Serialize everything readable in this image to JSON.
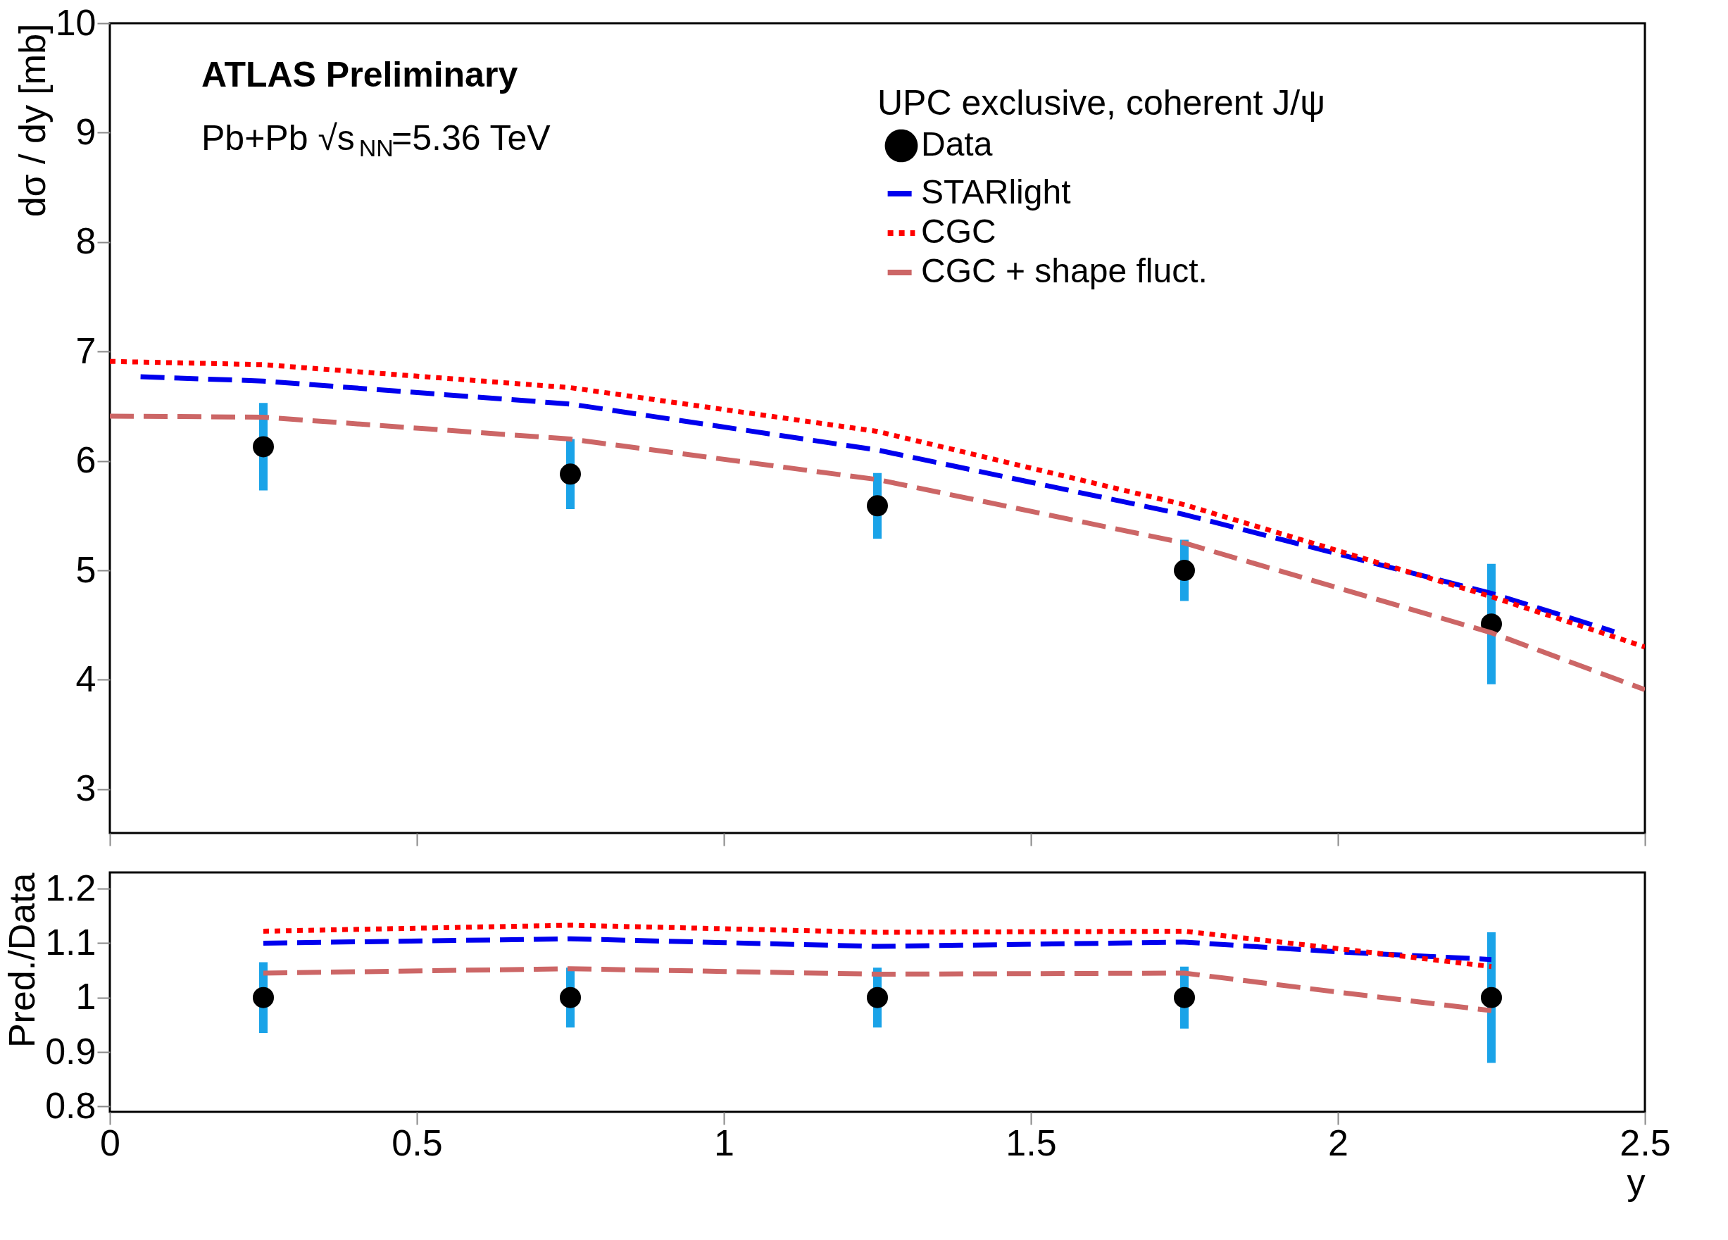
{
  "chart_data": [
    {
      "type": "line",
      "ylabel": "dσ / dy [mb]",
      "xlim": [
        0,
        2.5
      ],
      "xticks": [
        0,
        0.5,
        1,
        1.5,
        2,
        2.5
      ],
      "ylim": [
        2.6,
        10
      ],
      "yticks": [
        3,
        4,
        5,
        6,
        7,
        8,
        9,
        10
      ],
      "tick_labels": "y",
      "grid": false,
      "legend": "top right",
      "annotations": [
        "ATLAS Preliminary",
        "Pb+Pb   √s$_{NN}$=5.36 TeV",
        "UPC exclusive, coherent J/ψ"
      ],
      "series": [
        {
          "name": "Data",
          "type": "scatter",
          "marker": "circle",
          "color": "#000000",
          "x": [
            0.25,
            0.75,
            1.25,
            1.75,
            2.25
          ],
          "values": [
            6.13,
            5.88,
            5.59,
            5.0,
            4.51
          ],
          "errors": [
            0.4,
            0.32,
            0.3,
            0.28,
            0.55
          ]
        },
        {
          "name": "STARlight",
          "type": "line",
          "line_style": "dashed",
          "color": "#0000ee",
          "x": [
            0.05,
            0.25,
            0.75,
            1.25,
            1.75,
            2.25,
            2.45
          ],
          "values": [
            6.77,
            6.73,
            6.52,
            6.1,
            5.51,
            4.79,
            4.44
          ]
        },
        {
          "name": "CGC",
          "type": "line",
          "line_style": "dotted",
          "color": "#ff0000",
          "x": [
            0,
            0.25,
            0.75,
            1.25,
            1.75,
            2.25,
            2.5
          ],
          "values": [
            6.91,
            6.88,
            6.67,
            6.27,
            5.6,
            4.76,
            4.3
          ]
        },
        {
          "name": "CGC + shape fluct.",
          "type": "line",
          "line_style": "dashed",
          "color": "#cc6666",
          "x": [
            0,
            0.25,
            0.75,
            1.25,
            1.75,
            2.25,
            2.5
          ],
          "values": [
            6.41,
            6.4,
            6.2,
            5.83,
            5.25,
            4.43,
            3.91
          ]
        }
      ]
    },
    {
      "type": "line",
      "xlabel": "y",
      "ylabel": "Pred./Data",
      "xlim": [
        0,
        2.5
      ],
      "xticks": [
        0,
        0.5,
        1,
        1.5,
        2,
        2.5
      ],
      "ylim": [
        0.79,
        1.23
      ],
      "yticks": [
        0.8,
        0.9,
        1,
        1.1,
        1.2
      ],
      "grid": false,
      "series": [
        {
          "type": "scatter",
          "marker": "circle",
          "color": "#000000",
          "x": [
            0.25,
            0.75,
            1.25,
            1.75,
            2.25
          ],
          "values": [
            1,
            1,
            1,
            1,
            1
          ],
          "errors": [
            0.065,
            0.055,
            0.055,
            0.057,
            0.12
          ]
        },
        {
          "type": "line",
          "line_style": "dashed",
          "color": "#0000ee",
          "x": [
            0.25,
            0.75,
            1.25,
            1.75,
            2.0,
            2.25
          ],
          "values": [
            1.1,
            1.108,
            1.094,
            1.102,
            1.084,
            1.07
          ]
        },
        {
          "type": "line",
          "line_style": "dotted",
          "color": "#ff0000",
          "x": [
            0.25,
            0.75,
            1.25,
            1.75,
            2.0,
            2.25
          ],
          "values": [
            1.122,
            1.133,
            1.12,
            1.122,
            1.09,
            1.057
          ]
        },
        {
          "type": "line",
          "line_style": "dashed",
          "color": "#cc6666",
          "x": [
            0.25,
            0.75,
            1.25,
            1.75,
            2.0,
            2.25
          ],
          "values": [
            1.045,
            1.053,
            1.043,
            1.045,
            1.01,
            0.976
          ]
        }
      ]
    }
  ]
}
